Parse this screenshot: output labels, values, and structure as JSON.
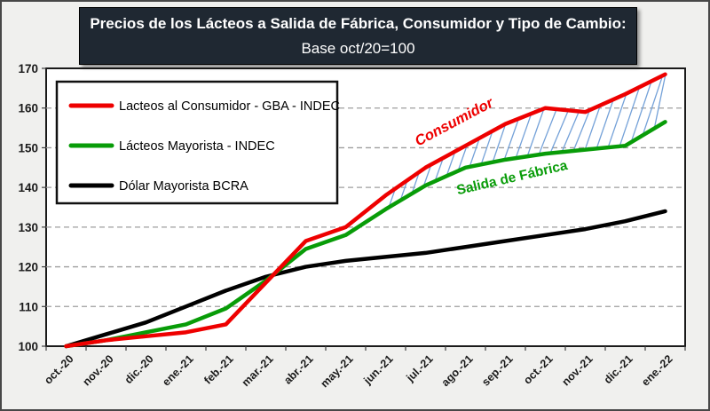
{
  "title": {
    "bold_part": "Precios de los Lácteos a Salida de Fábrica, Consumidor y Tipo de Cambio:",
    "normal_part": "Base oct/20=100"
  },
  "colors": {
    "title_background": "#1f2832",
    "title_text": "#ffffff",
    "page_background": "#f0f0ee",
    "plot_background": "#ffffff",
    "gridline": "#9e9e9e",
    "axis_text": "#1a1a1a",
    "hatch_blue": "#74a1d8",
    "consumer_red": "#ee0000",
    "wholesale_green": "#089c08",
    "dollar_black": "#000000"
  },
  "chart_data": {
    "type": "line",
    "title": "Precios de los Lácteos a Salida de Fábrica, Consumidor y Tipo de Cambio: Base oct/20=100",
    "xlabel": "",
    "ylabel": "",
    "ylim": [
      100,
      170
    ],
    "ytick_step": 10,
    "yticks": [
      100,
      110,
      120,
      130,
      140,
      150,
      160,
      170
    ],
    "grid": "horizontal-dashed",
    "legend_position": "top-left-inside",
    "categories": [
      "oct.-20",
      "nov.-20",
      "dic.-20",
      "ene.-21",
      "feb.-21",
      "mar.-21",
      "abr.-21",
      "may.-21",
      "jun.-21",
      "jul.-21",
      "ago.-21",
      "sep.-21",
      "oct.-21",
      "nov.-21",
      "dic.-21",
      "ene.-22"
    ],
    "series": [
      {
        "name": "Lacteos al Consumidor - GBA - INDEC",
        "color": "#ee0000",
        "values": [
          100,
          101.5,
          102.5,
          103.5,
          105.5,
          116,
          126.5,
          130,
          138,
          145,
          150.5,
          156,
          160,
          159,
          163.5,
          168.5
        ]
      },
      {
        "name": "Lácteos Mayorista - INDEC",
        "color": "#089c08",
        "values": [
          100,
          101.5,
          103.5,
          105.5,
          109.5,
          116.5,
          124.5,
          128,
          134.5,
          140.5,
          145,
          147,
          148.5,
          149.5,
          150.5,
          156.5
        ]
      },
      {
        "name": "Dólar Mayorista BCRA",
        "color": "#000000",
        "values": [
          100,
          103,
          106,
          110,
          114,
          117.5,
          120,
          121.5,
          122.5,
          123.5,
          125,
          126.5,
          128,
          129.5,
          131.5,
          134
        ]
      }
    ],
    "annotations": [
      {
        "text": "Consumidor",
        "color": "#ee0000",
        "style": "bold-italic",
        "rotation": -28,
        "x": 512,
        "y": 140
      },
      {
        "text": "Salida de Fábrica",
        "color": "#089c08",
        "style": "bold",
        "rotation": -13,
        "x": 576,
        "y": 203
      }
    ],
    "hatch": {
      "style": "diagonal-blue-lines",
      "between": [
        "Lacteos al Consumidor - GBA - INDEC",
        "Lácteos Mayorista - INDEC"
      ],
      "from_category": "jun.-21",
      "to_category": "ene.-22"
    }
  }
}
